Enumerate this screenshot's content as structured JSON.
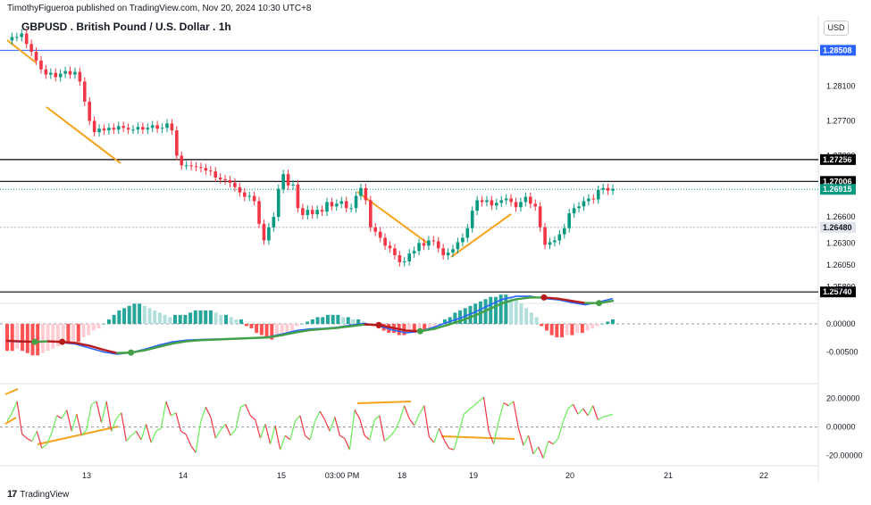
{
  "header": {
    "caption": "TimothyFigueroa published on TradingView.com, Nov 20, 2024 10:30 UTC+8",
    "title": "GBPUSD . British Pound / U.S. Dollar . 1h",
    "currency": "USD"
  },
  "footer": {
    "brand": "TradingView",
    "brand_icon": "tradingview-logo-icon"
  },
  "colors": {
    "up": "#089981",
    "down": "#f23645",
    "trendline": "#f7a21b",
    "blue_line": "#2962ff",
    "black_line": "#000000",
    "grey_line": "#b2b5be",
    "macd_fast": "#2962ff",
    "macd_slow_up": "#43a047",
    "macd_slow_down": "#b71c1c",
    "osc_up": "#66ee55",
    "osc_down": "#f23645"
  },
  "chart_data": [
    {
      "type": "candlestick",
      "title": "GBPUSD . British Pound / U.S. Dollar . 1h",
      "x_ticks": [
        "13",
        "14",
        "15",
        "03:00 PM",
        "18",
        "19",
        "20",
        "21",
        "22"
      ],
      "y_ticks": [
        "1.28100",
        "1.27700",
        "1.27300",
        "1.26600",
        "1.26300",
        "1.26050",
        "1.25800"
      ],
      "ylim": [
        1.2565,
        1.289
      ],
      "price_levels": [
        {
          "value": 1.28508,
          "label": "1.28508",
          "style": "blue"
        },
        {
          "value": 1.27256,
          "label": "1.27256",
          "style": "black"
        },
        {
          "value": 1.27006,
          "label": "1.27006",
          "style": "black"
        },
        {
          "value": 1.26915,
          "label": "1.26915",
          "style": "current"
        },
        {
          "value": 1.2648,
          "label": "1.26480",
          "style": "grey"
        },
        {
          "value": 1.2574,
          "label": "1.25740",
          "style": "black"
        }
      ],
      "closes": [
        1.2862,
        1.2866,
        1.2866,
        1.287,
        1.2858,
        1.2849,
        1.2839,
        1.2829,
        1.2823,
        1.2825,
        1.282,
        1.2824,
        1.2827,
        1.2823,
        1.2826,
        1.2815,
        1.2792,
        1.277,
        1.2757,
        1.2761,
        1.2759,
        1.2762,
        1.276,
        1.2764,
        1.2762,
        1.276,
        1.276,
        1.2763,
        1.276,
        1.2762,
        1.2765,
        1.2761,
        1.2762,
        1.2767,
        1.2759,
        1.273,
        1.2719,
        1.2719,
        1.2718,
        1.2717,
        1.2716,
        1.2713,
        1.2712,
        1.2705,
        1.2703,
        1.2702,
        1.2699,
        1.2694,
        1.2688,
        1.2683,
        1.2684,
        1.2678,
        1.2652,
        1.2633,
        1.2648,
        1.266,
        1.2692,
        1.2709,
        1.2696,
        1.2697,
        1.267,
        1.2662,
        1.2668,
        1.2663,
        1.2668,
        1.2666,
        1.2677,
        1.2672,
        1.2675,
        1.2678,
        1.267,
        1.267,
        1.2684,
        1.2693,
        1.2679,
        1.2648,
        1.2643,
        1.2636,
        1.2627,
        1.2624,
        1.2616,
        1.2608,
        1.2609,
        1.2618,
        1.2621,
        1.263,
        1.2627,
        1.2633,
        1.2632,
        1.2624,
        1.2616,
        1.2619,
        1.2623,
        1.2631,
        1.2636,
        1.2647,
        1.2667,
        1.2679,
        1.2677,
        1.2679,
        1.2673,
        1.2676,
        1.2679,
        1.2681,
        1.2677,
        1.2671,
        1.2677,
        1.2683,
        1.2675,
        1.2672,
        1.2648,
        1.2628,
        1.2631,
        1.2633,
        1.264,
        1.2647,
        1.2664,
        1.267,
        1.2672,
        1.2678,
        1.2681,
        1.268,
        1.2691,
        1.2693,
        1.269,
        1.2692
      ]
    },
    {
      "type": "macd",
      "y_ticks": [
        "0.00000",
        "-0.00500"
      ],
      "histogram": [
        -0.00012,
        -0.00012,
        -0.00011,
        -0.00012,
        -0.00013,
        -0.00014,
        -0.00014,
        -0.00013,
        -0.00012,
        -0.00011,
        -0.0001,
        -9e-05,
        -9e-05,
        -8e-05,
        -8e-05,
        -6e-05,
        -5e-05,
        -3e-05,
        -2e-05,
        0,
        2e-05,
        4e-05,
        6e-05,
        7e-05,
        8e-05,
        9e-05,
        9e-05,
        8e-05,
        7e-05,
        6e-05,
        5e-05,
        4e-05,
        3e-05,
        4e-05,
        4e-05,
        4e-05,
        5e-05,
        6e-05,
        6e-05,
        6e-05,
        6e-05,
        5e-05,
        4e-05,
        4e-05,
        3e-05,
        2e-05,
        2e-05,
        -1e-05,
        -2e-05,
        -4e-05,
        -5e-05,
        -6e-05,
        -7e-05,
        -6e-05,
        -5e-05,
        -4e-05,
        -3e-05,
        -1e-05,
        0,
        1e-05,
        2e-05,
        3e-05,
        3e-05,
        4e-05,
        4e-05,
        4e-05,
        3e-05,
        3e-05,
        2e-05,
        2e-05,
        1e-05,
        0,
        -1e-05,
        -2e-05,
        -3e-05,
        -4e-05,
        -4e-05,
        -5e-05,
        -5e-05,
        -4e-05,
        -4e-05,
        -3e-05,
        -3e-05,
        -2e-05,
        -1e-05,
        0,
        2e-05,
        3e-05,
        5e-05,
        6e-05,
        7e-05,
        8e-05,
        9e-05,
        0.0001,
        0.00011,
        0.00012,
        0.00012,
        0.00013,
        0.00013,
        0.00012,
        0.00011,
        9e-05,
        7e-05,
        5e-05,
        3e-05,
        -1e-05,
        -3e-05,
        -5e-05,
        -6e-05,
        -6e-05,
        -5e-05,
        -5e-05,
        -4e-05,
        -4e-05,
        -3e-05,
        -2e-05,
        -1e-05,
        0,
        1e-05,
        2e-05
      ],
      "fast_line": [
        -0.0031,
        -0.0032,
        -0.0032,
        -0.0031,
        -0.0033,
        -0.0036,
        -0.0043,
        -0.005,
        -0.0054,
        -0.0051,
        -0.0045,
        -0.0038,
        -0.0032,
        -0.0029,
        -0.0028,
        -0.0027,
        -0.0027,
        -0.0026,
        -0.0025,
        -0.0023,
        -0.0018,
        -0.0012,
        -0.0009,
        -0.0008,
        -0.0006,
        -0.0002,
        0.0001,
        -0.0004,
        -0.0011,
        -0.0016,
        -0.0013,
        -0.0006,
        0.0003,
        0.0011,
        0.0021,
        0.0033,
        0.0044,
        0.0049,
        0.0049,
        0.0045,
        0.0043,
        0.0038,
        0.0034,
        0.0039,
        0.0045
      ],
      "slow_line": [
        -0.003,
        -0.0031,
        -0.0032,
        -0.0031,
        -0.0032,
        -0.0034,
        -0.0039,
        -0.0046,
        -0.0052,
        -0.0051,
        -0.0047,
        -0.0041,
        -0.0035,
        -0.0031,
        -0.0029,
        -0.0028,
        -0.0027,
        -0.0026,
        -0.0025,
        -0.0024,
        -0.002,
        -0.0015,
        -0.0011,
        -0.0009,
        -0.0007,
        -0.0004,
        -0.0001,
        -0.0002,
        -0.0007,
        -0.0012,
        -0.0013,
        -0.0009,
        -0.0002,
        0.0006,
        0.0015,
        0.0026,
        0.0037,
        0.0044,
        0.0047,
        0.0047,
        0.0045,
        0.0041,
        0.0037,
        0.0037,
        0.0041
      ]
    },
    {
      "type": "oscillator",
      "y_ticks": [
        "20.00000",
        "0.00000",
        "-20.00000"
      ],
      "ylim": [
        -26,
        28
      ],
      "values": [
        4,
        10,
        18,
        -5,
        -8,
        -10,
        -3,
        -15,
        -12,
        -4,
        8,
        6,
        12,
        -3,
        9,
        -6,
        -2,
        16,
        18,
        3,
        18,
        -3,
        6,
        10,
        -10,
        -6,
        -3,
        -9,
        2,
        -11,
        -3,
        -1,
        18,
        8,
        10,
        -3,
        -5,
        -13,
        -18,
        4,
        14,
        7,
        -8,
        -2,
        2,
        -6,
        -2,
        14,
        16,
        8,
        5,
        -8,
        2,
        -12,
        1,
        -16,
        -6,
        -9,
        4,
        8,
        -6,
        -9,
        4,
        11,
        5,
        -3,
        7,
        -6,
        -8,
        -16,
        12,
        6,
        -6,
        -9,
        5,
        8,
        -10,
        -7,
        -3,
        4,
        15,
        6,
        1,
        9,
        15,
        -7,
        -11,
        -1,
        -9,
        -15,
        -16,
        -4,
        9,
        12,
        15,
        18,
        21,
        -3,
        -12,
        4,
        17,
        15,
        18,
        -1,
        -13,
        -6,
        -19,
        -14,
        -22,
        -10,
        -12,
        -8,
        4,
        13,
        16,
        9,
        13,
        8,
        15,
        5,
        7,
        8,
        9
      ]
    }
  ],
  "annotations": {
    "trendline_count": 9
  }
}
